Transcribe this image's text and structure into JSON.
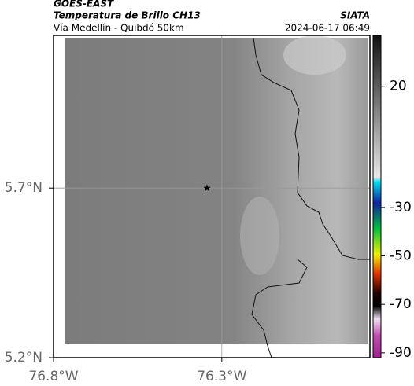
{
  "header": {
    "source": "GOES-EAST",
    "title": "Temperatura de Brillo CH13",
    "agency": "SIATA",
    "subtitle": "Vía Medellín - Quibdó 50km",
    "timestamp": "2024-06-17 06:49"
  },
  "map": {
    "xlim": [
      -76.8,
      -75.86
    ],
    "ylim": [
      5.2,
      6.15
    ],
    "xticks": [
      {
        "value": -76.8,
        "label": "76.8°W"
      },
      {
        "value": -76.3,
        "label": "76.3°W"
      }
    ],
    "yticks": [
      {
        "value": 5.7,
        "label": "5.7°N"
      },
      {
        "value": 5.2,
        "label": "5.2°N"
      }
    ],
    "grid": true,
    "marker": {
      "lon": -76.344,
      "lat": 5.7
    }
  },
  "colorbar": {
    "lim": [
      -92,
      41
    ],
    "ticks": [
      20,
      -30,
      -50,
      -70,
      -90
    ]
  }
}
